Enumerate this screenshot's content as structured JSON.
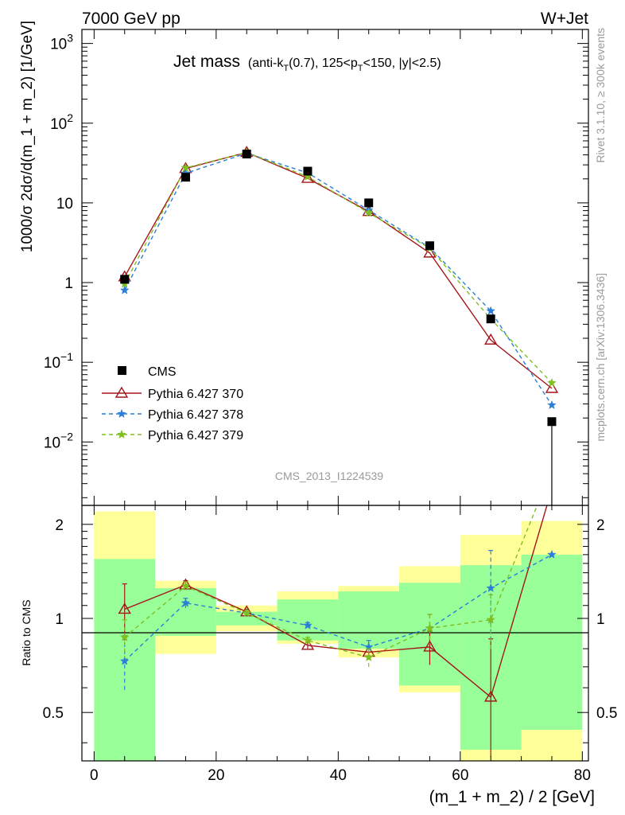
{
  "header": {
    "left": "7000 GeV pp",
    "right": "W+Jet"
  },
  "side_labels": {
    "rivet": "Rivet 3.1.10, ≥ 300k events",
    "mcplots": "mcplots.cern.ch [arXiv:1306.3436]"
  },
  "chart_data": {
    "type": "line",
    "title_main": "Jet mass",
    "title_cuts": "(anti-k_T(0.7), 125<p_T<150, |y|<2.5)",
    "analysis_id": "CMS_2013_I1224539",
    "xlabel": "(m_1 + m_2) / 2 [GeV]",
    "ylabel": "1000/σ 2dσ/d(m_1 + m_2) [1/GeV]",
    "ratio_ylabel": "Ratio to CMS",
    "xlim": [
      -2,
      81
    ],
    "ylim": [
      0.0016,
      1500
    ],
    "ratio_ylim": [
      0.35,
      2.3
    ],
    "yscale": "log",
    "ratio_yscale": "log",
    "x_ticks": [
      "0",
      "20",
      "40",
      "60",
      "80"
    ],
    "y_ticks": [
      "10^3",
      "10^2",
      "10",
      "1",
      "10^-1",
      "10^-2"
    ],
    "ratio_ticks": [
      "0.5",
      "1",
      "2"
    ],
    "legend_position": "middle-left",
    "bin_edges": [
      0,
      10,
      20,
      30,
      40,
      50,
      60,
      70,
      80
    ],
    "x": [
      5,
      15,
      25,
      35,
      45,
      55,
      65,
      75
    ],
    "data": {
      "name": "CMS",
      "color": "#000000",
      "values": [
        1.1,
        21,
        41,
        25,
        10,
        2.9,
        0.35,
        0.018
      ],
      "ratio_band_inner": [
        [
          0.34,
          1.55
        ],
        [
          0.88,
          1.25
        ],
        [
          0.95,
          1.05
        ],
        [
          0.85,
          1.15
        ],
        [
          0.8,
          1.22
        ],
        [
          0.61,
          1.3
        ],
        [
          0.38,
          1.48
        ],
        [
          0.44,
          1.6
        ]
      ],
      "ratio_band_outer": [
        [
          0.34,
          2.2
        ],
        [
          0.77,
          1.32
        ],
        [
          0.91,
          1.1
        ],
        [
          0.83,
          1.22
        ],
        [
          0.75,
          1.27
        ],
        [
          0.58,
          1.47
        ],
        [
          0.35,
          1.85
        ],
        [
          0.35,
          2.05
        ]
      ]
    },
    "series": [
      {
        "name": "Pythia 6.427 370",
        "color": "#a4161a",
        "dash": "",
        "marker": "triangle",
        "values": [
          1.18,
          27,
          43,
          20.3,
          7.8,
          2.35,
          0.19,
          0.047
        ],
        "ratio": [
          1.07,
          1.28,
          1.05,
          0.82,
          0.78,
          0.81,
          0.56,
          2.6
        ],
        "ratio_err": [
          0.22,
          0.04,
          0.02,
          0.02,
          0.03,
          0.1,
          0.3,
          0.0
        ]
      },
      {
        "name": "Pythia 6.427 378",
        "color": "#2b7fd6",
        "dash": "5,4",
        "marker": "star",
        "values": [
          0.8,
          23.5,
          42,
          23.8,
          8.1,
          2.75,
          0.44,
          0.029
        ],
        "ratio": [
          0.73,
          1.12,
          1.04,
          0.95,
          0.81,
          0.93,
          1.25,
          1.6
        ],
        "ratio_err": [
          0.15,
          0.04,
          0.02,
          0.02,
          0.04,
          0.1,
          0.4,
          0.0
        ]
      },
      {
        "name": "Pythia 6.427 379",
        "color": "#7fbf1f",
        "dash": "5,4",
        "marker": "star",
        "values": [
          0.96,
          27.5,
          43,
          21.3,
          7.5,
          2.7,
          0.35,
          0.055
        ],
        "ratio": [
          0.87,
          1.27,
          1.04,
          0.85,
          0.75,
          0.93,
          0.99,
          3.0
        ],
        "ratio_err": [
          0.12,
          0.04,
          0.02,
          0.02,
          0.05,
          0.1,
          0.2,
          0.0
        ]
      }
    ]
  }
}
